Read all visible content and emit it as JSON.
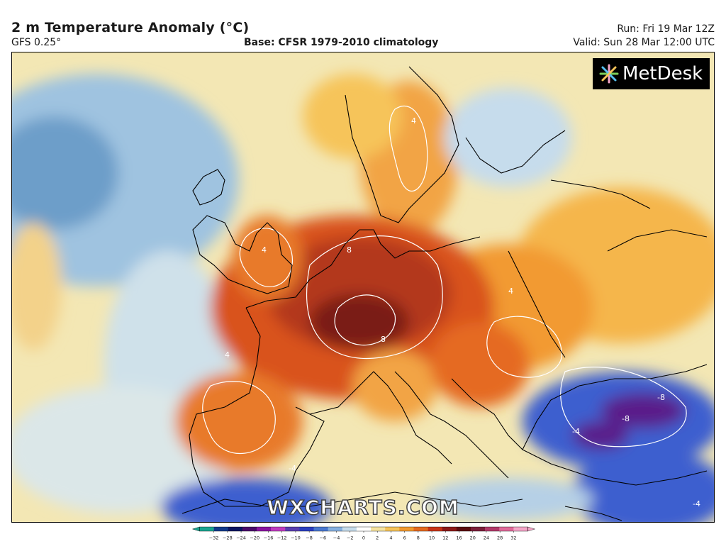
{
  "header": {
    "title": "2 m Temperature Anomaly (°C)",
    "model": "GFS 0.25°",
    "base": "Base: CFSR 1979-2010 climatology",
    "run": "Run: Fri 19 Mar 12Z",
    "valid": "Valid: Sun 28 Mar 12:00 UTC"
  },
  "logo": {
    "text": "MetDesk",
    "icon": "metdesk-star-icon"
  },
  "watermark": "WXCHARTS.COM",
  "contour_labels": [
    "4",
    "8",
    "-4",
    "-8"
  ],
  "colorbar": {
    "labels": [
      "−32",
      "−28",
      "−24",
      "−20",
      "−16",
      "−12",
      "−10",
      "−8",
      "−6",
      "−4",
      "−2",
      "0",
      "2",
      "4",
      "6",
      "8",
      "10",
      "12",
      "16",
      "20",
      "24",
      "28",
      "32"
    ],
    "colors": [
      "#1aa590",
      "#123a8a",
      "#0a1560",
      "#4a0a6a",
      "#8a14a0",
      "#c03cc0",
      "#5a3fb0",
      "#2a3fc0",
      "#4a78d0",
      "#86b0e0",
      "#c6dcec",
      "#ffffff",
      "#f6e3a0",
      "#f6c45a",
      "#f29a30",
      "#e56a20",
      "#c83418",
      "#8c1a18",
      "#5a0c10",
      "#7a1f3a",
      "#b23a6a",
      "#e06a9a",
      "#f4a6c8"
    ]
  },
  "colors": {
    "ocean_neutral": "#e0ecf4",
    "warm_strong": "#b3381c",
    "warm_extreme": "#7a1a14",
    "cold": "#2440c0",
    "cold_extreme": "#5a1a8a"
  }
}
